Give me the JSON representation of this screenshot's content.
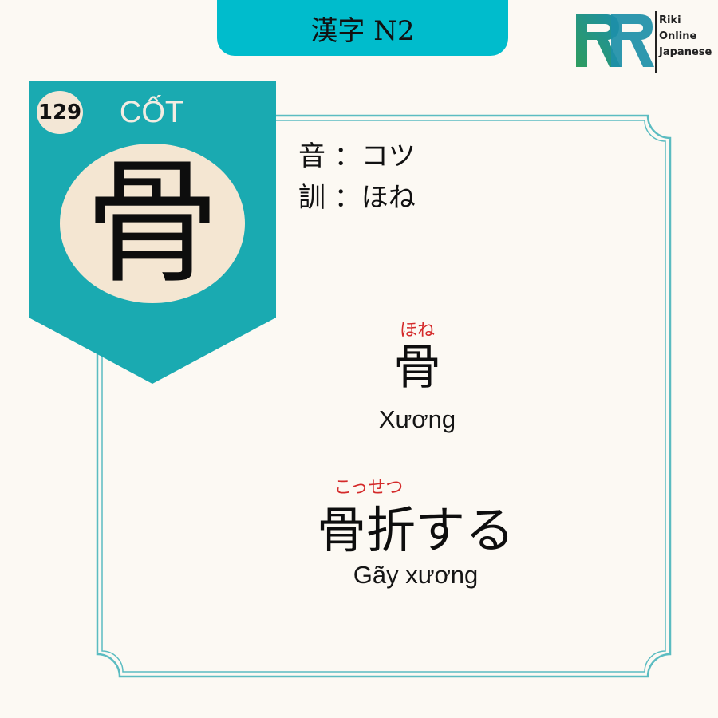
{
  "header": {
    "title": "漢字 N2"
  },
  "logo": {
    "lines": [
      "Riki",
      "Online",
      "Japanese"
    ]
  },
  "kanji_card": {
    "number": "129",
    "han_viet": "CỐT",
    "character": "骨",
    "readings": {
      "on": "音 ：コツ",
      "kun": "訓 ：ほね"
    }
  },
  "vocabulary": [
    {
      "furigana": "ほね",
      "word": "骨",
      "meaning": "Xương"
    },
    {
      "furigana": "こっせつ",
      "word": "骨折する",
      "meaning": "Gãy xương"
    }
  ],
  "colors": {
    "teal": "#1aaab1",
    "header_teal": "#00bccc",
    "cream": "#f4e6d2",
    "background": "#fcf9f3",
    "furigana_red": "#d42a2a"
  }
}
